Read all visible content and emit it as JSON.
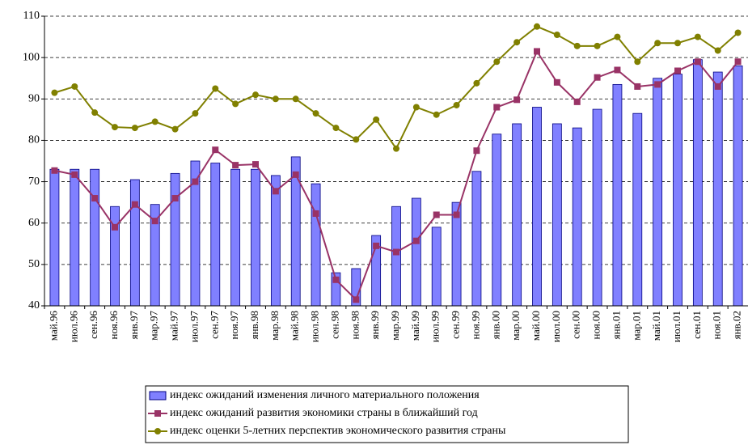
{
  "chart_data": {
    "type": "bar_line",
    "categories": [
      "май.96",
      "июл.96",
      "сен.96",
      "ноя.96",
      "янв.97",
      "мар.97",
      "май.97",
      "июл.97",
      "сен.97",
      "ноя.97",
      "янв.98",
      "мар.98",
      "май.98",
      "июл.98",
      "сен.98",
      "ноя.98",
      "янв.99",
      "мар.99",
      "май.99",
      "июл.99",
      "сен.99",
      "ноя.99",
      "янв.00",
      "мар.00",
      "май.00",
      "июл.00",
      "сен.00",
      "ноя.00",
      "янв.01",
      "мар.01",
      "май.01",
      "июл.01",
      "сен.01",
      "ноя.01",
      "янв.02"
    ],
    "series": [
      {
        "name": "индекс ожиданий изменения личного материального положения",
        "type": "bar",
        "color": "#8080ff",
        "values": [
          73,
          73,
          73,
          64,
          70.5,
          64.5,
          72,
          75,
          74.5,
          73,
          73,
          71.5,
          76,
          69.5,
          48,
          49,
          57,
          64,
          66,
          59,
          65,
          72.5,
          81.5,
          84,
          88,
          84,
          83,
          87.5,
          93.5,
          86.5,
          95,
          96,
          99.5,
          96.5,
          98
        ]
      },
      {
        "name": "индекс ожиданий развития экономики страны в ближайший год",
        "type": "line",
        "marker": "square",
        "color": "#993366",
        "values": [
          72.7,
          71.7,
          66,
          59,
          64.5,
          60.5,
          66,
          70,
          77.7,
          74,
          74.2,
          67.7,
          71.7,
          62.3,
          46.3,
          41.5,
          54.5,
          53,
          55.7,
          62,
          62,
          77.5,
          88,
          89.8,
          101.5,
          94,
          89.3,
          95.2,
          97,
          93,
          93.5,
          96.8,
          99,
          93,
          99
        ]
      },
      {
        "name": "индекс оценки 5-летних перспектив экономического развития страны",
        "type": "line",
        "marker": "circle",
        "color": "#808000",
        "values": [
          91.5,
          93,
          86.7,
          83.2,
          83,
          84.5,
          82.7,
          86.5,
          92.5,
          88.8,
          91,
          90,
          90,
          86.5,
          83,
          80.2,
          85,
          78,
          88,
          86.2,
          88.5,
          93.8,
          99,
          103.7,
          107.5,
          105.5,
          102.8,
          102.8,
          105,
          99,
          103.5,
          103.5,
          105,
          101.7,
          106
        ]
      }
    ],
    "ylim": [
      40,
      110
    ],
    "yticks": [
      40,
      50,
      60,
      70,
      80,
      90,
      100,
      110
    ],
    "grid": true,
    "legend": "bottom"
  }
}
